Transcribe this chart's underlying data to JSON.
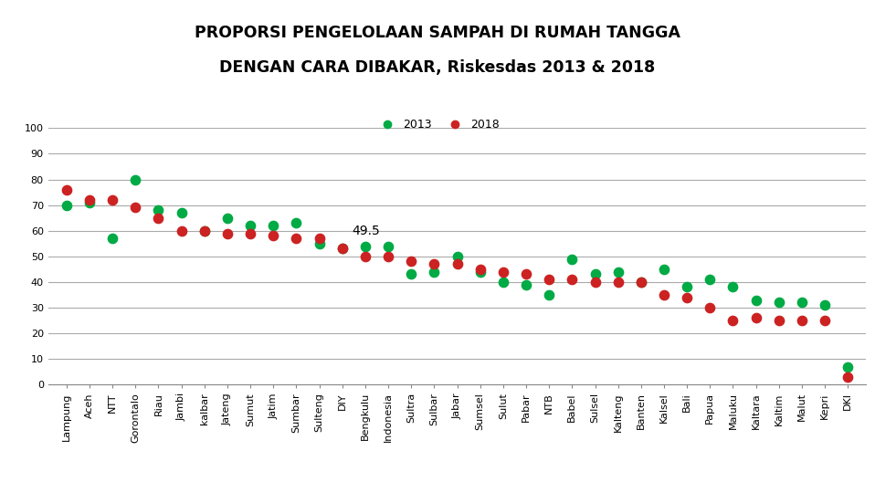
{
  "title_line1": "PROPORSI PENGELOLAAN SAMPAH DI RUMAH TANGGA",
  "title_line2": "DENGAN CARA DIBAKAR, Riskesdas 2013 & 2018",
  "categories": [
    "Lampung",
    "Aceh",
    "NTT",
    "Gorontalo",
    "Riau",
    "Jambi",
    "kalbar",
    "Jateng",
    "Sumut",
    "Jatim",
    "Sumbar",
    "Sulteng",
    "DIY",
    "Bengkulu",
    "Indonesia",
    "Sultra",
    "Sulbar",
    "Jabar",
    "Sumsel",
    "Sulut",
    "Pabar",
    "NTB",
    "Babel",
    "Sulsel",
    "Kalteng",
    "Banten",
    "Kalsel",
    "Bali",
    "Papua",
    "Maluku",
    "Kaltara",
    "Kaltim",
    "Malut",
    "Kepri",
    "DKI"
  ],
  "data_2013": [
    70,
    71,
    57,
    80,
    68,
    67,
    60,
    65,
    62,
    62,
    63,
    55,
    53,
    54,
    54,
    43,
    44,
    50,
    44,
    40,
    39,
    35,
    49,
    43,
    44,
    40,
    45,
    38,
    41,
    38,
    33,
    32,
    32,
    31,
    7
  ],
  "data_2018": [
    76,
    72,
    72,
    69,
    65,
    60,
    60,
    59,
    59,
    58,
    57,
    57,
    53,
    50,
    50,
    48,
    47,
    47,
    45,
    44,
    43,
    41,
    41,
    40,
    40,
    40,
    35,
    34,
    30,
    25,
    26,
    25,
    25,
    25,
    3
  ],
  "annotation_idx": 14,
  "annotation_text": "49.5",
  "color_2013": "#00AA44",
  "color_2018": "#CC2222",
  "legend_label_2013": "2013",
  "legend_label_2018": "2018",
  "ylim": [
    0,
    100
  ],
  "yticks": [
    0,
    10,
    20,
    30,
    40,
    50,
    60,
    70,
    80,
    90,
    100
  ],
  "background_color": "#ffffff",
  "grid_color": "#aaaaaa",
  "marker_size": 55,
  "title_fontsize": 12.5,
  "tick_fontsize": 8,
  "legend_fontsize": 9
}
